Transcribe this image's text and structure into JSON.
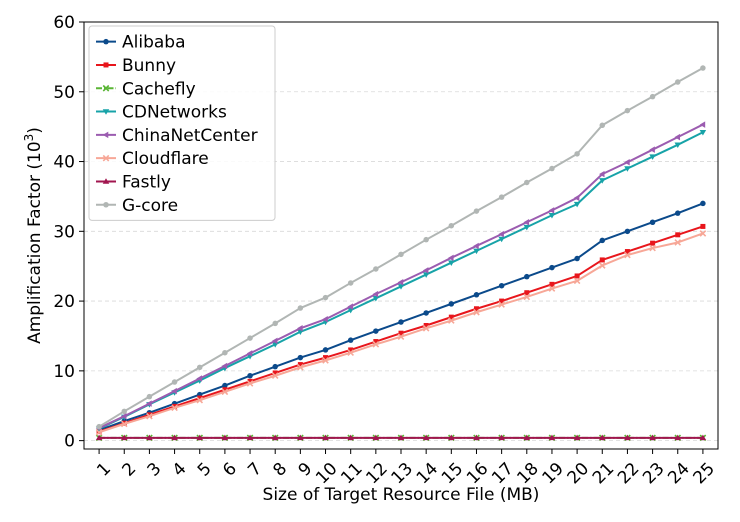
{
  "chart_data": {
    "type": "line",
    "title": "",
    "xlabel": "Size of Target Resource File (MB)",
    "ylabel_main": "Amplification Factor (10",
    "ylabel_sup": "3",
    "ylabel_end": ")",
    "x": [
      1,
      2,
      3,
      4,
      5,
      6,
      7,
      8,
      9,
      10,
      11,
      12,
      13,
      14,
      15,
      16,
      17,
      18,
      19,
      20,
      21,
      22,
      23,
      24,
      25
    ],
    "x_tick_labels": [
      "1",
      "2",
      "3",
      "4",
      "5",
      "6",
      "7",
      "8",
      "9",
      "10",
      "11",
      "12",
      "13",
      "14",
      "15",
      "16",
      "17",
      "18",
      "19",
      "20",
      "21",
      "22",
      "23",
      "24",
      "25"
    ],
    "ylim": [
      -1.2,
      60
    ],
    "yticks": [
      0,
      10,
      20,
      30,
      40,
      50,
      60
    ],
    "y_tick_labels": [
      "0",
      "10",
      "20",
      "30",
      "40",
      "50",
      "60"
    ],
    "grid": "horizontal-dashed",
    "legend_position": "upper-left",
    "series": [
      {
        "name": "Alibaba",
        "color": "#0b4a8b",
        "marker": "circle",
        "dash": "solid",
        "values": [
          1.5,
          2.8,
          4.0,
          5.3,
          6.6,
          7.9,
          9.3,
          10.6,
          11.9,
          13.0,
          14.4,
          15.7,
          17.0,
          18.3,
          19.6,
          20.9,
          22.2,
          23.5,
          24.8,
          26.1,
          28.7,
          30.0,
          31.3,
          32.6,
          34.0
        ]
      },
      {
        "name": "Bunny",
        "color": "#e8161c",
        "marker": "square",
        "dash": "solid",
        "values": [
          1.3,
          2.5,
          3.7,
          4.9,
          6.1,
          7.3,
          8.5,
          9.7,
          10.9,
          11.9,
          13.0,
          14.2,
          15.4,
          16.5,
          17.7,
          18.9,
          20.0,
          21.2,
          22.4,
          23.6,
          25.9,
          27.1,
          28.3,
          29.5,
          30.7
        ]
      },
      {
        "name": "Cachefly",
        "color": "#5ab535",
        "marker": "x",
        "dash": "dashdot",
        "values": [
          0.4,
          0.4,
          0.4,
          0.4,
          0.4,
          0.4,
          0.4,
          0.4,
          0.4,
          0.4,
          0.4,
          0.4,
          0.4,
          0.4,
          0.4,
          0.4,
          0.4,
          0.4,
          0.4,
          0.4,
          0.4,
          0.4,
          0.4,
          0.4,
          0.4
        ]
      },
      {
        "name": "CDNetworks",
        "color": "#17a3a8",
        "marker": "triangle-down",
        "dash": "solid",
        "values": [
          1.7,
          3.4,
          5.2,
          6.9,
          8.6,
          10.4,
          12.1,
          13.8,
          15.6,
          17.0,
          18.7,
          20.4,
          22.1,
          23.8,
          25.5,
          27.2,
          28.9,
          30.6,
          32.3,
          33.9,
          37.3,
          39.0,
          40.7,
          42.4,
          44.2
        ]
      },
      {
        "name": "ChinaNetCenter",
        "color": "#9b5cb0",
        "marker": "triangle-left",
        "dash": "solid",
        "values": [
          1.8,
          3.5,
          5.3,
          7.1,
          8.9,
          10.7,
          12.5,
          14.3,
          16.1,
          17.4,
          19.2,
          21.0,
          22.7,
          24.4,
          26.2,
          27.9,
          29.6,
          31.3,
          33.0,
          34.8,
          38.2,
          39.9,
          41.7,
          43.5,
          45.3
        ]
      },
      {
        "name": "Cloudflare",
        "color": "#f7a797",
        "marker": "x",
        "dash": "solid",
        "values": [
          1.2,
          2.4,
          3.5,
          4.7,
          5.8,
          7.0,
          8.2,
          9.3,
          10.5,
          11.5,
          12.6,
          13.8,
          14.9,
          16.1,
          17.2,
          18.4,
          19.5,
          20.6,
          21.8,
          22.9,
          25.1,
          26.6,
          27.6,
          28.4,
          29.7
        ]
      },
      {
        "name": "Fastly",
        "color": "#a1164f",
        "marker": "triangle-up",
        "dash": "solid",
        "values": [
          0.4,
          0.4,
          0.4,
          0.4,
          0.4,
          0.4,
          0.4,
          0.4,
          0.4,
          0.4,
          0.4,
          0.4,
          0.4,
          0.4,
          0.4,
          0.4,
          0.4,
          0.4,
          0.4,
          0.4,
          0.4,
          0.4,
          0.4,
          0.4,
          0.4
        ]
      },
      {
        "name": "G-core",
        "color": "#b1b6b4",
        "marker": "circle",
        "dash": "solid",
        "values": [
          2.0,
          4.2,
          6.3,
          8.4,
          10.5,
          12.6,
          14.7,
          16.8,
          19.0,
          20.5,
          22.6,
          24.6,
          26.7,
          28.8,
          30.8,
          32.9,
          34.9,
          37.0,
          39.0,
          41.1,
          45.2,
          47.3,
          49.3,
          51.4,
          53.4
        ]
      }
    ]
  }
}
